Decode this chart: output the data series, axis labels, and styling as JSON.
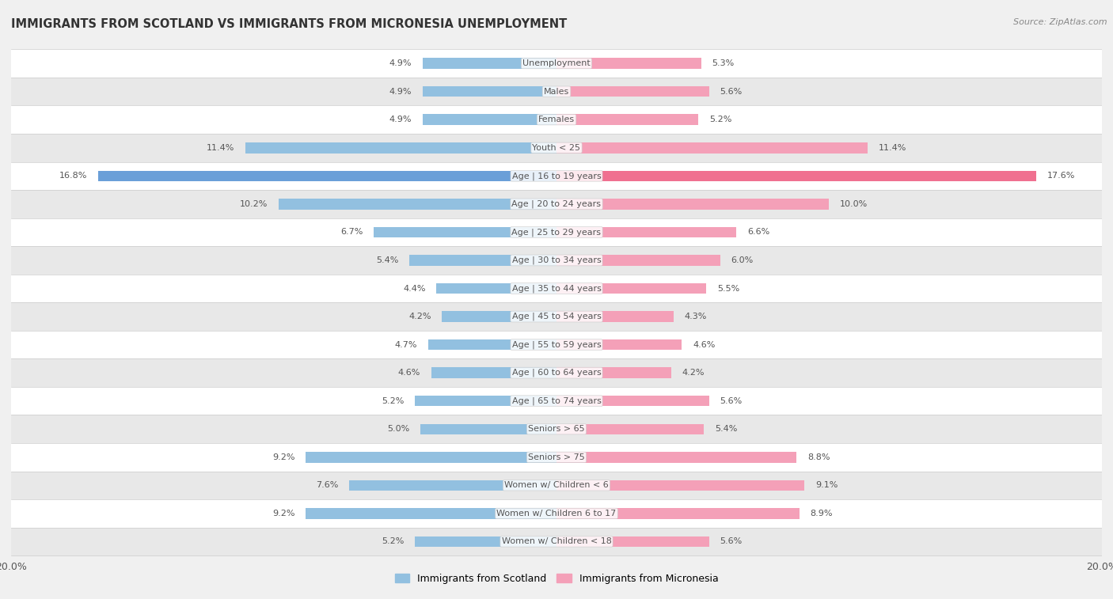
{
  "title": "IMMIGRANTS FROM SCOTLAND VS IMMIGRANTS FROM MICRONESIA UNEMPLOYMENT",
  "source": "Source: ZipAtlas.com",
  "categories": [
    "Unemployment",
    "Males",
    "Females",
    "Youth < 25",
    "Age | 16 to 19 years",
    "Age | 20 to 24 years",
    "Age | 25 to 29 years",
    "Age | 30 to 34 years",
    "Age | 35 to 44 years",
    "Age | 45 to 54 years",
    "Age | 55 to 59 years",
    "Age | 60 to 64 years",
    "Age | 65 to 74 years",
    "Seniors > 65",
    "Seniors > 75",
    "Women w/ Children < 6",
    "Women w/ Children 6 to 17",
    "Women w/ Children < 18"
  ],
  "scotland_values": [
    4.9,
    4.9,
    4.9,
    11.4,
    16.8,
    10.2,
    6.7,
    5.4,
    4.4,
    4.2,
    4.7,
    4.6,
    5.2,
    5.0,
    9.2,
    7.6,
    9.2,
    5.2
  ],
  "micronesia_values": [
    5.3,
    5.6,
    5.2,
    11.4,
    17.6,
    10.0,
    6.6,
    6.0,
    5.5,
    4.3,
    4.6,
    4.2,
    5.6,
    5.4,
    8.8,
    9.1,
    8.9,
    5.6
  ],
  "scotland_color": "#92c0e0",
  "micronesia_color": "#f4a0b8",
  "highlight_scotland_color": "#6a9fd8",
  "highlight_micronesia_color": "#f07090",
  "row_color_light": "#ffffff",
  "row_color_dark": "#e8e8e8",
  "separator_color": "#cccccc",
  "background_color": "#f0f0f0",
  "axis_limit": 20.0,
  "label_color": "#555555",
  "category_color": "#555555",
  "legend_scotland": "Immigrants from Scotland",
  "legend_micronesia": "Immigrants from Micronesia"
}
